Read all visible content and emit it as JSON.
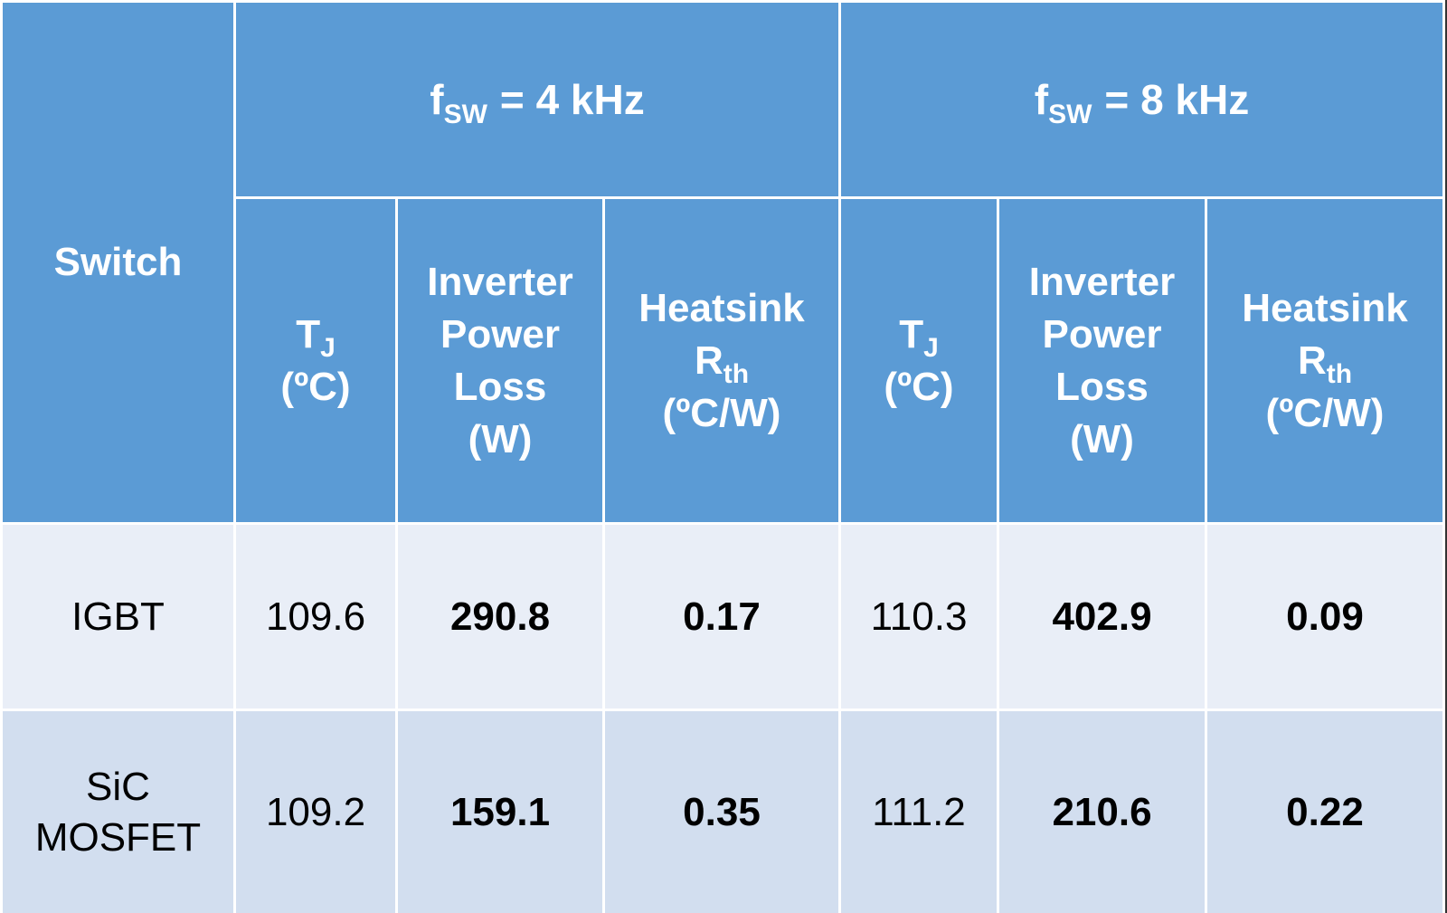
{
  "table": {
    "corner": "Switch",
    "groups": [
      {
        "symbol": "f",
        "subscript": "SW",
        "text": "= 4 kHz"
      },
      {
        "symbol": "f",
        "subscript": "SW",
        "text": "= 8 kHz"
      }
    ],
    "columns": [
      [
        {
          "text": "T",
          "subscript": "J"
        },
        {
          "text": "(ºC)"
        }
      ],
      [
        {
          "text": "Inverter"
        },
        {
          "text": "Power"
        },
        {
          "text": "Loss"
        },
        {
          "text": "(W)"
        }
      ],
      [
        {
          "text": "Heatsink"
        },
        {
          "text": "R",
          "subscript": "th"
        },
        {
          "text": "(ºC/W)"
        }
      ],
      [
        {
          "text": "T",
          "subscript": "J"
        },
        {
          "text": "(ºC)"
        }
      ],
      [
        {
          "text": "Inverter"
        },
        {
          "text": "Power"
        },
        {
          "text": "Loss"
        },
        {
          "text": "(W)"
        }
      ],
      [
        {
          "text": "Heatsink"
        },
        {
          "text": "R",
          "subscript": "th"
        },
        {
          "text": "(ºC/W)"
        }
      ]
    ],
    "rows": [
      {
        "switch": [
          "IGBT"
        ],
        "cells": [
          "109.6",
          "290.8",
          "0.17",
          "110.3",
          "402.9",
          "0.09"
        ]
      },
      {
        "switch": [
          "SiC",
          "MOSFET"
        ],
        "cells": [
          "109.2",
          "159.1",
          "0.35",
          "111.2",
          "210.6",
          "0.22"
        ]
      }
    ]
  }
}
